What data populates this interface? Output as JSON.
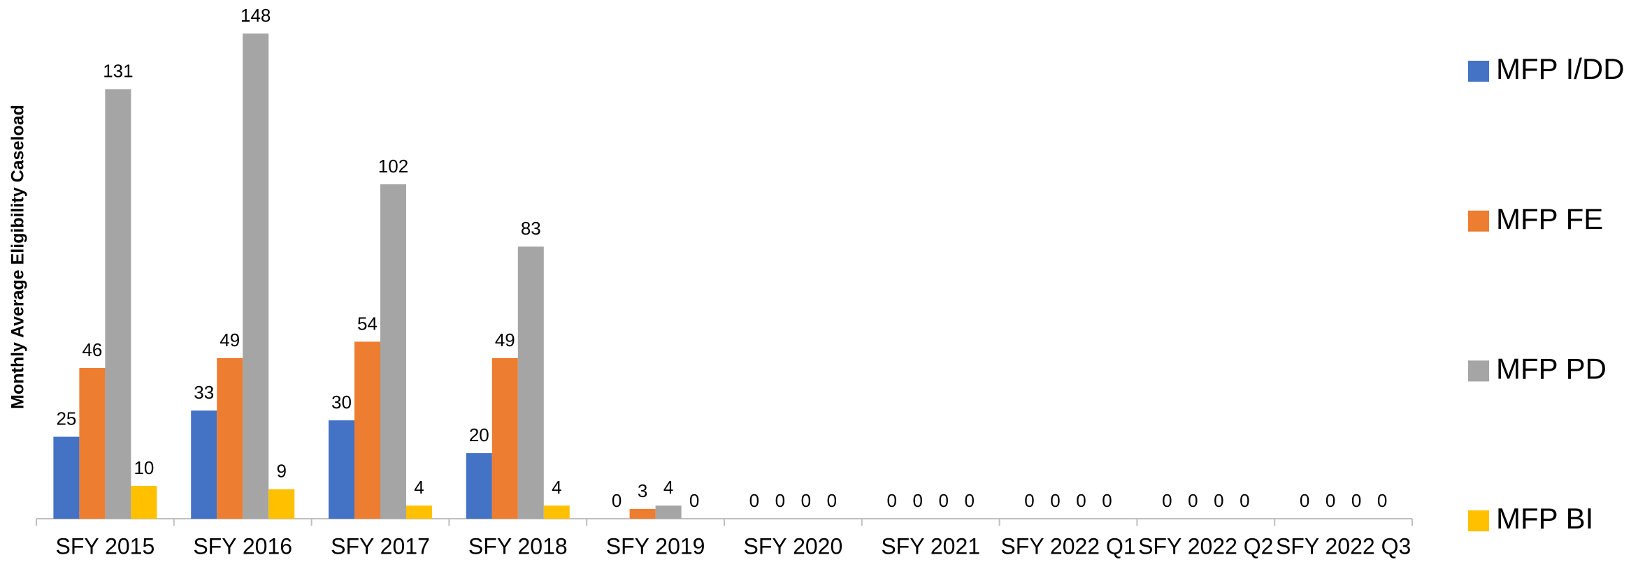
{
  "chart_data": {
    "type": "bar",
    "y_axis_label": "Monthly Average Eligibility Caseload",
    "categories": [
      "SFY 2015",
      "SFY 2016",
      "SFY 2017",
      "SFY 2018",
      "SFY 2019",
      "SFY 2020",
      "SFY 2021",
      "SFY 2022 Q1",
      "SFY 2022 Q2",
      "SFY 2022 Q3"
    ],
    "series": [
      {
        "name": "MFP I/DD",
        "color": "#4472c4",
        "values": [
          25,
          33,
          30,
          20,
          0,
          0,
          0,
          0,
          0,
          0
        ]
      },
      {
        "name": "MFP FE",
        "color": "#ed7d31",
        "values": [
          46,
          49,
          54,
          49,
          3,
          0,
          0,
          0,
          0,
          0
        ]
      },
      {
        "name": "MFP PD",
        "color": "#a5a5a5",
        "values": [
          131,
          148,
          102,
          83,
          4,
          0,
          0,
          0,
          0,
          0
        ]
      },
      {
        "name": "MFP BI",
        "color": "#ffc000",
        "values": [
          10,
          9,
          4,
          4,
          0,
          0,
          0,
          0,
          0,
          0
        ]
      }
    ],
    "legend": "right"
  }
}
